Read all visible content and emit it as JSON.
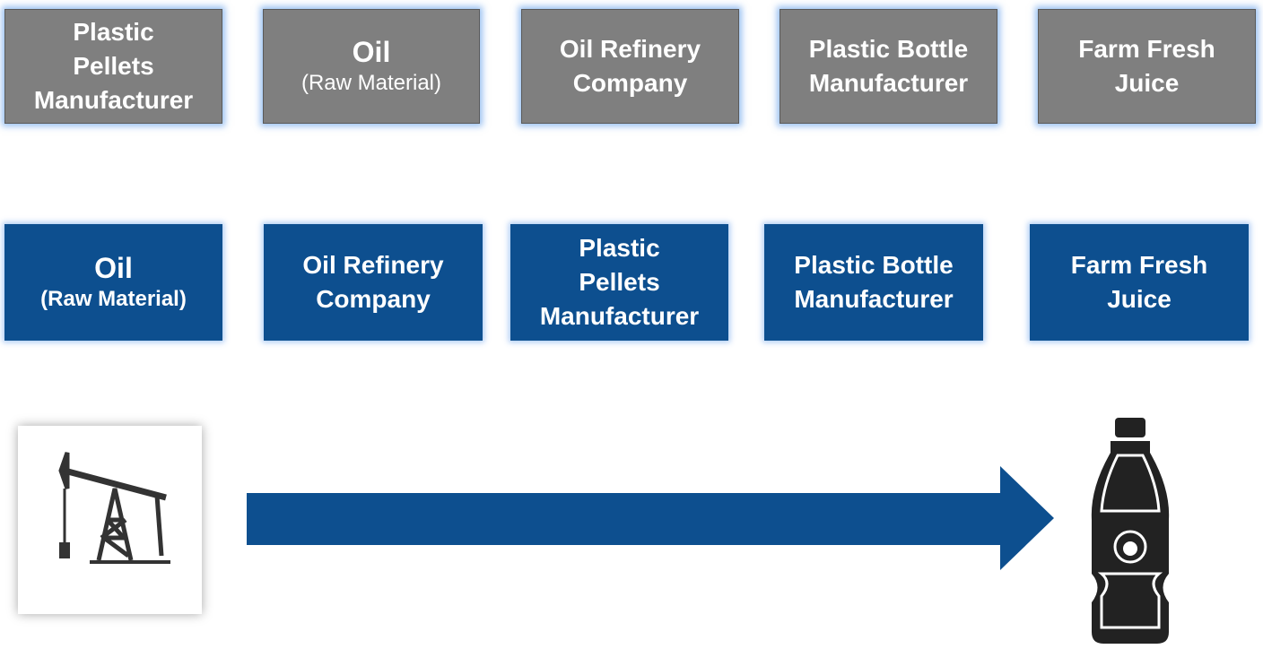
{
  "rows": [
    {
      "boxes": [
        {
          "lines": [
            "Plastic",
            "Pellets",
            "Manufacturer"
          ]
        },
        {
          "lines": [
            "Oil"
          ],
          "note": "(Raw Material)"
        },
        {
          "lines": [
            "Oil Refinery",
            "Company"
          ]
        },
        {
          "lines": [
            "Plastic Bottle",
            "Manufacturer"
          ]
        },
        {
          "lines": [
            "Farm Fresh",
            "Juice"
          ]
        }
      ]
    },
    {
      "boxes": [
        {
          "lines": [
            "Oil"
          ],
          "note": "(Raw Material)"
        },
        {
          "lines": [
            "Oil Refinery",
            "Company"
          ]
        },
        {
          "lines": [
            "Plastic",
            "Pellets",
            "Manufacturer"
          ]
        },
        {
          "lines": [
            "Plastic Bottle",
            "Manufacturer"
          ]
        },
        {
          "lines": [
            "Farm Fresh",
            "Juice"
          ]
        }
      ]
    }
  ]
}
